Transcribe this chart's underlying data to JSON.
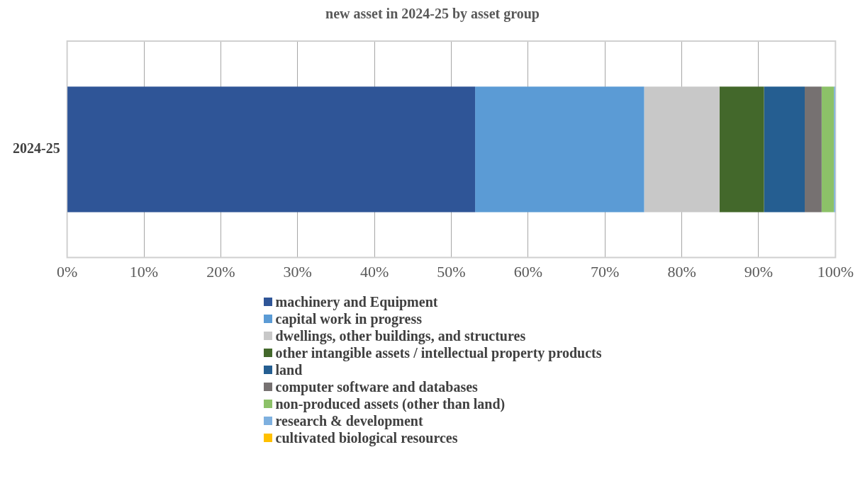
{
  "chart_data": {
    "type": "bar",
    "title": "new asset in 2024-25 by asset group",
    "orientation": "horizontal",
    "stacked": true,
    "categories": [
      "2024-25"
    ],
    "series": [
      {
        "name": "machinery and Equipment",
        "color": "#2f5597",
        "values": [
          53.1
        ]
      },
      {
        "name": "capital work in progress",
        "color": "#5b9bd5",
        "values": [
          22.0
        ]
      },
      {
        "name": "dwellings, other buildings, and structures",
        "color": "#c8c8c8",
        "values": [
          9.8
        ]
      },
      {
        "name": "other intangible assets / intellectual property products",
        "color": "#43682b",
        "values": [
          5.8
        ]
      },
      {
        "name": "land",
        "color": "#255e91",
        "values": [
          5.3
        ]
      },
      {
        "name": "computer software and databases",
        "color": "#767171",
        "values": [
          2.2
        ]
      },
      {
        "name": "non-produced assets (other than land)",
        "color": "#8cc168",
        "values": [
          1.6
        ]
      },
      {
        "name": "research & development",
        "color": "#7eb0df",
        "values": [
          0.2
        ]
      },
      {
        "name": "cultivated biological resources",
        "color": "#ffc000",
        "values": [
          0
        ]
      }
    ],
    "xlim": [
      0,
      100
    ],
    "xticks": [
      {
        "value": 0,
        "label": "0%"
      },
      {
        "value": 10,
        "label": "10%"
      },
      {
        "value": 20,
        "label": "20%"
      },
      {
        "value": 30,
        "label": "30%"
      },
      {
        "value": 40,
        "label": "40%"
      },
      {
        "value": 50,
        "label": "50%"
      },
      {
        "value": 60,
        "label": "60%"
      },
      {
        "value": 70,
        "label": "70%"
      },
      {
        "value": 80,
        "label": "80%"
      },
      {
        "value": 90,
        "label": "90%"
      },
      {
        "value": 100,
        "label": "100%"
      }
    ],
    "grid": "x",
    "legend": "bottom"
  }
}
